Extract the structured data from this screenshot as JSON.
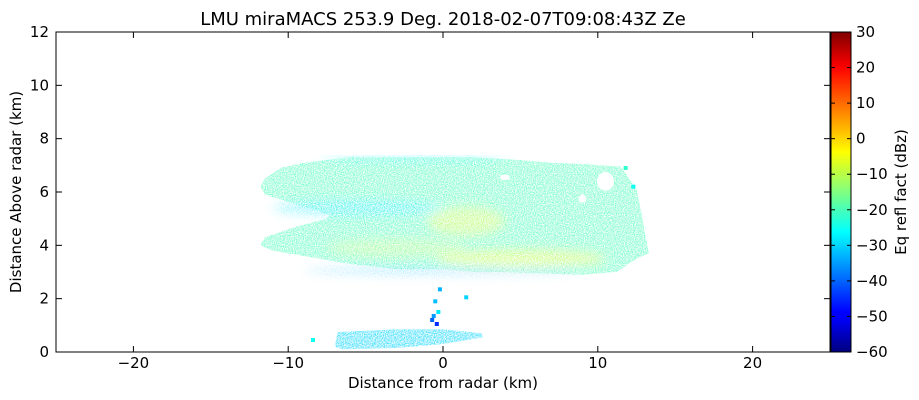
{
  "chart_data": {
    "type": "heatmap",
    "title": "LMU miraMACS 253.9 Deg. 2018-02-07T09:08:43Z  Ze",
    "xlabel": "Distance from radar (km)",
    "ylabel": "Distance Above radar  (km)",
    "xlim": [
      -25,
      25
    ],
    "ylim": [
      0,
      12
    ],
    "x_ticks": [
      -20,
      -10,
      0,
      10,
      20
    ],
    "y_ticks": [
      0,
      2,
      4,
      6,
      8,
      10,
      12
    ],
    "grid": false,
    "colorbar": {
      "label": "Eq refl fact (dBz)",
      "range": [
        -60,
        30
      ],
      "ticks": [
        30,
        20,
        10,
        0,
        -10,
        -20,
        -30,
        -40,
        -50,
        -60
      ],
      "colormap": "jet"
    },
    "regions": [
      {
        "polygon": [
          [
            -11.5,
            6.5
          ],
          [
            -10.5,
            6.9
          ],
          [
            -9,
            7.1
          ],
          [
            -6,
            7.3
          ],
          [
            -2,
            7.3
          ],
          [
            2,
            7.3
          ],
          [
            5,
            7.2
          ],
          [
            7,
            7.1
          ],
          [
            9,
            7.05
          ],
          [
            11.5,
            6.95
          ],
          [
            12.5,
            6.1
          ],
          [
            12.8,
            5.3
          ],
          [
            13.0,
            4.6
          ],
          [
            13.3,
            3.7
          ],
          [
            12.5,
            3.5
          ],
          [
            11.2,
            3.0
          ],
          [
            9,
            2.9
          ],
          [
            6,
            2.95
          ],
          [
            4,
            3.0
          ],
          [
            2,
            3.0
          ],
          [
            0,
            3.1
          ],
          [
            -3,
            3.1
          ],
          [
            -6,
            3.3
          ],
          [
            -9,
            3.6
          ],
          [
            -11,
            3.8
          ],
          [
            -11.8,
            4.0
          ],
          [
            -11.5,
            4.3
          ],
          [
            -9.5,
            4.7
          ],
          [
            -7.5,
            5.0
          ],
          [
            -7.3,
            5.15
          ],
          [
            -9,
            5.45
          ],
          [
            -11.5,
            5.9
          ],
          [
            -11.8,
            6.2
          ]
        ],
        "value_dbz": -20
      },
      {
        "polygon": [
          [
            -7,
            0.2
          ],
          [
            -6.8,
            0.75
          ],
          [
            -3,
            0.85
          ],
          [
            0,
            0.85
          ],
          [
            2.5,
            0.7
          ],
          [
            2.6,
            0.55
          ],
          [
            0,
            0.3
          ],
          [
            -3,
            0.15
          ],
          [
            -6.5,
            0.1
          ]
        ],
        "value_dbz": -30
      }
    ],
    "cores": [
      {
        "x": 1.5,
        "y": 4.9,
        "rx": 2.5,
        "ry": 0.55,
        "value_dbz": -10
      },
      {
        "x": 5.0,
        "y": 3.5,
        "rx": 5.5,
        "ry": 0.35,
        "value_dbz": -8
      },
      {
        "x": -3.0,
        "y": 3.9,
        "rx": 4.5,
        "ry": 0.35,
        "value_dbz": -14
      }
    ],
    "weak_edges": [
      {
        "x": -5.5,
        "y": 5.4,
        "rx": 5.5,
        "ry": 0.3,
        "value_dbz": -28
      },
      {
        "x": -2.0,
        "y": 7.25,
        "rx": 6.0,
        "ry": 0.12,
        "value_dbz": -26
      },
      {
        "x": 0.0,
        "y": 3.05,
        "rx": 9.0,
        "ry": 0.12,
        "value_dbz": -32
      }
    ],
    "holes": [
      {
        "x": 10.5,
        "y": 6.4,
        "rx": 0.55,
        "ry": 0.35
      },
      {
        "x": 9.0,
        "y": 5.75,
        "rx": 0.25,
        "ry": 0.15
      },
      {
        "x": 4.0,
        "y": 6.55,
        "rx": 0.3,
        "ry": 0.1
      }
    ],
    "speckles": [
      {
        "x": -0.5,
        "y": 1.9,
        "value_dbz": -32
      },
      {
        "x": -0.3,
        "y": 1.5,
        "value_dbz": -28
      },
      {
        "x": -0.7,
        "y": 1.2,
        "value_dbz": -40
      },
      {
        "x": -0.4,
        "y": 1.05,
        "value_dbz": -45
      },
      {
        "x": -0.6,
        "y": 1.35,
        "value_dbz": -35
      },
      {
        "x": 1.5,
        "y": 2.05,
        "value_dbz": -30
      },
      {
        "x": -8.4,
        "y": 0.45,
        "value_dbz": -25
      },
      {
        "x": -0.2,
        "y": 2.35,
        "value_dbz": -33
      },
      {
        "x": 11.8,
        "y": 6.9,
        "value_dbz": -22
      },
      {
        "x": 12.3,
        "y": 6.2,
        "value_dbz": -25
      }
    ]
  }
}
